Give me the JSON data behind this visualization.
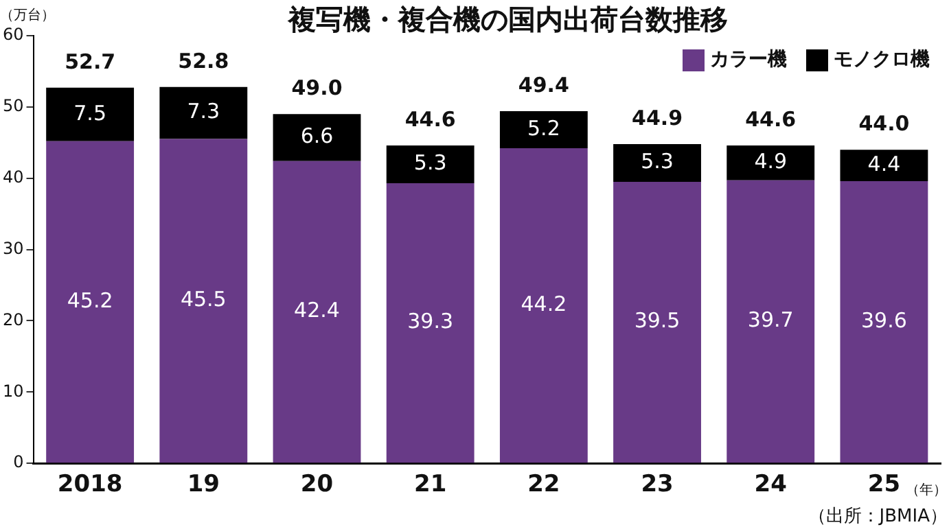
{
  "chart_data": {
    "type": "bar",
    "title": "複写機・複合機の国内出荷台数推移",
    "ylabel": "（万台）",
    "xlabel": "（年）",
    "categories": [
      "2018",
      "19",
      "20",
      "21",
      "22",
      "23",
      "24",
      "25"
    ],
    "series": [
      {
        "name": "カラー機",
        "color": "#683a87",
        "values": [
          45.2,
          45.5,
          42.4,
          39.3,
          44.2,
          39.5,
          39.7,
          39.6
        ]
      },
      {
        "name": "モノクロ機",
        "color": "#000000",
        "values": [
          7.5,
          7.3,
          6.6,
          5.3,
          5.2,
          5.3,
          4.9,
          4.4
        ]
      }
    ],
    "stacked": true,
    "data_labels": true,
    "totals": [
      "52.7",
      "52.8",
      "49.0",
      "44.6",
      "49.4",
      "44.9",
      "44.6",
      "44.0"
    ],
    "ylim": [
      0,
      60
    ],
    "yticks": [
      0,
      10,
      20,
      30,
      40,
      50,
      60
    ],
    "grid": false,
    "legend": "top right",
    "annotations": [
      "（出所：JBMIA）"
    ]
  }
}
